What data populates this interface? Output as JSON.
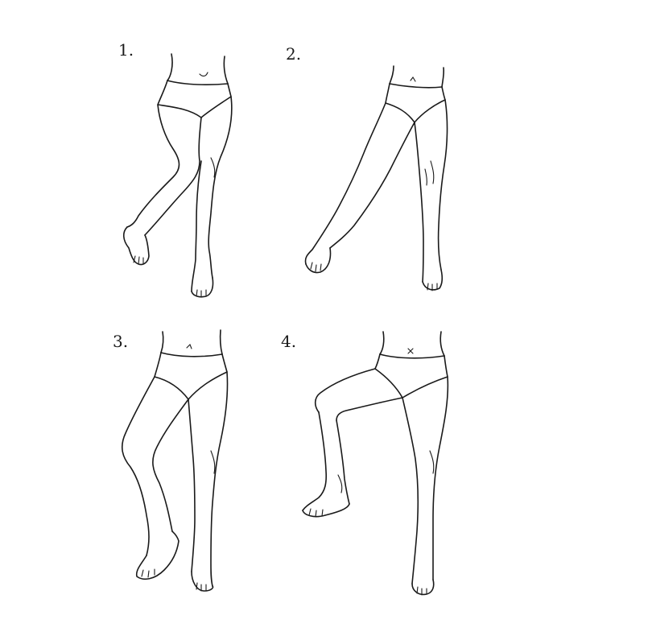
{
  "figures": [
    {
      "number": "1.",
      "depiction": "legs-knee-bent-back"
    },
    {
      "number": "2.",
      "depiction": "legs-leg-extended-sideways"
    },
    {
      "number": "3.",
      "depiction": "legs-knee-forward"
    },
    {
      "number": "4.",
      "depiction": "legs-knee-raised-high"
    }
  ]
}
